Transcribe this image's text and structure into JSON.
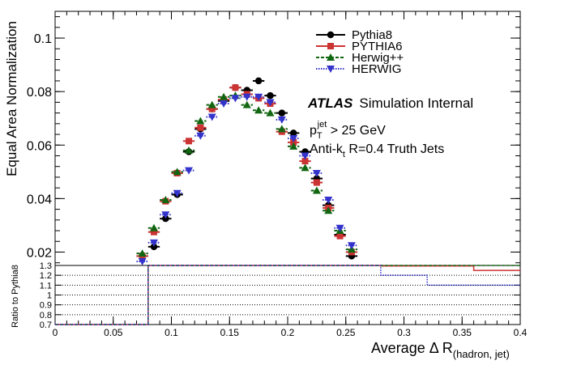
{
  "chart_data": {
    "type": "scatter",
    "legend": {
      "placement": "top-center",
      "entries": [
        {
          "label": "Pythia8",
          "color": "#000000",
          "marker": "circle",
          "line": "solid"
        },
        {
          "label": "PYTHIA6",
          "color": "#cc3333",
          "marker": "square",
          "line": "solid"
        },
        {
          "label": "Herwig++",
          "color": "#116611",
          "marker": "triangle-up",
          "line": "dashed"
        },
        {
          "label": "HERWIG",
          "color": "#3333cc",
          "marker": "triangle-down",
          "line": "dotted"
        }
      ]
    },
    "annotations": {
      "atlas": "ATLAS",
      "atlas_suffix": "Simulation Internal",
      "pt_p": "p",
      "pt_sub": "T",
      "pt_sup": "jet",
      "pt_rest": " > 25 GeV",
      "jets_pre": "Anti-k",
      "jets_sub": "t",
      "jets_rest": " R=0.4 Truth Jets"
    },
    "main": {
      "ylabel": "Equal Area Normalization",
      "ylim": [
        0.015,
        0.11
      ],
      "yticks": [
        "0.02",
        "0.04",
        "0.06",
        "0.08",
        "0.1"
      ],
      "ytick_values": [
        0.02,
        0.04,
        0.06,
        0.08,
        0.1
      ],
      "x": [
        0.075,
        0.085,
        0.095,
        0.105,
        0.115,
        0.125,
        0.135,
        0.145,
        0.155,
        0.165,
        0.175,
        0.185,
        0.195,
        0.205,
        0.215,
        0.225,
        0.235,
        0.245,
        0.255
      ],
      "x_errors": [
        0.005,
        0.005,
        0.005,
        0.005,
        0.005,
        0.005,
        0.005,
        0.005,
        0.005,
        0.005,
        0.005,
        0.005,
        0.005,
        0.005,
        0.005,
        0.005,
        0.005,
        0.005,
        0.005
      ],
      "series": [
        {
          "name": "Pythia8",
          "values": [
            0.0185,
            0.022,
            0.0325,
            0.0415,
            0.0575,
            0.066,
            0.0735,
            0.0765,
            0.0815,
            0.0805,
            0.084,
            0.0785,
            0.072,
            0.0645,
            0.0575,
            0.0475,
            0.0375,
            0.0265,
            0.0185
          ]
        },
        {
          "name": "PYTHIA6",
          "values": [
            0.0185,
            0.0275,
            0.039,
            0.0495,
            0.0615,
            0.0665,
            0.0735,
            0.077,
            0.0815,
            0.079,
            0.0775,
            0.0755,
            0.065,
            0.061,
            0.054,
            0.046,
            0.0365,
            0.026,
            0.02
          ]
        },
        {
          "name": "Herwig++",
          "values": [
            0.0195,
            0.029,
            0.0395,
            0.05,
            0.058,
            0.069,
            0.075,
            0.078,
            0.0785,
            0.075,
            0.073,
            0.072,
            0.066,
            0.0595,
            0.0515,
            0.043,
            0.0355,
            0.028,
            0.021
          ]
        },
        {
          "name": "HERWIG",
          "values": [
            0.0165,
            0.0235,
            0.034,
            0.042,
            0.0505,
            0.0635,
            0.0705,
            0.0755,
            0.0775,
            0.078,
            0.078,
            0.076,
            0.0695,
            0.0625,
            0.056,
            0.0495,
            0.0395,
            0.029,
            0.0225
          ]
        }
      ]
    },
    "ratio": {
      "ylabel": "Ratio to Pythia8",
      "ylim": [
        0.7,
        1.3
      ],
      "yticks": [
        "0.7",
        "0.8",
        "0.9",
        "1",
        "1.1",
        "1.2",
        "1.3"
      ],
      "ytick_values": [
        0.7,
        0.8,
        0.9,
        1.0,
        1.1,
        1.2,
        1.3
      ],
      "reference_lines": [
        0.8,
        0.9,
        1.0,
        1.1,
        1.2
      ],
      "series": [
        {
          "name": "PYTHIA6",
          "steps": [
            [
              0,
              0.08,
              0.7
            ],
            [
              0.08,
              0.28,
              1.3
            ],
            [
              0.28,
              0.36,
              1.295
            ],
            [
              0.36,
              0.4,
              1.25
            ]
          ]
        },
        {
          "name": "Herwig++",
          "steps": [
            [
              0,
              0.08,
              0.7
            ],
            [
              0.08,
              0.36,
              1.3
            ],
            [
              0.36,
              0.4,
              1.3
            ]
          ]
        },
        {
          "name": "HERWIG",
          "steps": [
            [
              0,
              0.08,
              0.7
            ],
            [
              0.08,
              0.28,
              1.3
            ],
            [
              0.28,
              0.32,
              1.2
            ],
            [
              0.32,
              0.4,
              1.1
            ]
          ]
        }
      ]
    },
    "xaxis": {
      "xlabel": "Average Δ R",
      "xlabel_sub": "(hadron, jet)",
      "xlim": [
        0,
        0.4
      ],
      "xticks": [
        "0",
        "0.05",
        "0.1",
        "0.15",
        "0.2",
        "0.25",
        "0.3",
        "0.35",
        "0.4"
      ],
      "xtick_values": [
        0,
        0.05,
        0.1,
        0.15,
        0.2,
        0.25,
        0.3,
        0.35,
        0.4
      ]
    }
  }
}
